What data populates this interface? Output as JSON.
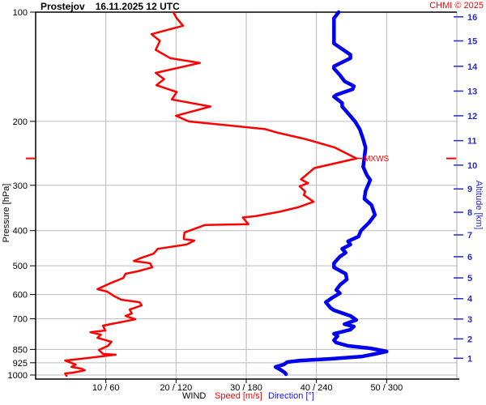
{
  "header": {
    "station": "Prostejov",
    "datetime": "16.11.2025 12 UTC",
    "copyright": "CHMI © 2025"
  },
  "axes": {
    "left_label": "Pressure [hPa]",
    "right_label": "Altitude [km]",
    "bottom_wind": "WIND",
    "bottom_speed": "Speed [m/s]",
    "bottom_direction": "Direction [°]"
  },
  "colors": {
    "speed_curve": "#ff0000",
    "direction_curve": "#0000ee",
    "altitude_axis": "#2929cc",
    "grid": "#bbbbbb",
    "frame": "#000000",
    "right_border": "#aaaaaa",
    "max_wind_marker": "#ff0000"
  },
  "chart_data": {
    "type": "line",
    "title": "Prostejov 16.11.2025 12 UTC",
    "x_axis": {
      "label": "WIND  Speed [m/s]  Direction [°]",
      "speed_range_ms": [
        0,
        60
      ],
      "direction_range_deg": [
        0,
        360
      ],
      "tick_speed_values": [
        10,
        20,
        30,
        40,
        50
      ],
      "tick_labels": [
        "10 / 60",
        "20 / 120",
        "30 / 180",
        "40 / 240",
        "50 / 300"
      ]
    },
    "y_axis": {
      "label_left": "Pressure [hPa]",
      "label_right": "Altitude [km]",
      "scale": "log",
      "pressure_range_hpa": [
        100,
        1026
      ],
      "pressure_ticks": [
        100,
        200,
        300,
        400,
        500,
        600,
        700,
        850,
        925,
        1000
      ],
      "altitude_ticks": [
        {
          "km": 16,
          "pressure_hpa": 103
        },
        {
          "km": 15,
          "pressure_hpa": 120
        },
        {
          "km": 14,
          "pressure_hpa": 141
        },
        {
          "km": 13,
          "pressure_hpa": 165
        },
        {
          "km": 12,
          "pressure_hpa": 193
        },
        {
          "km": 11,
          "pressure_hpa": 226
        },
        {
          "km": 10,
          "pressure_hpa": 264
        },
        {
          "km": 9,
          "pressure_hpa": 307
        },
        {
          "km": 8,
          "pressure_hpa": 356
        },
        {
          "km": 7,
          "pressure_hpa": 411
        },
        {
          "km": 6,
          "pressure_hpa": 472
        },
        {
          "km": 5,
          "pressure_hpa": 540
        },
        {
          "km": 4,
          "pressure_hpa": 616
        },
        {
          "km": 3,
          "pressure_hpa": 701
        },
        {
          "km": 2,
          "pressure_hpa": 795
        },
        {
          "km": 1,
          "pressure_hpa": 899
        }
      ]
    },
    "max_wind": {
      "label": "MXWS",
      "pressure_hpa": 253,
      "speed_ms": 45.7
    },
    "grid": true,
    "series": [
      {
        "name": "Speed [m/s]",
        "color": "#ff0000",
        "x_scale": "speed",
        "points": [
          [
            100,
            19.6
          ],
          [
            104,
            20.1
          ],
          [
            109,
            21.0
          ],
          [
            115,
            16.5
          ],
          [
            120,
            17.7
          ],
          [
            127,
            17.1
          ],
          [
            134,
            19.2
          ],
          [
            138,
            23.4
          ],
          [
            147,
            17.1
          ],
          [
            153,
            18.3
          ],
          [
            159,
            17.2
          ],
          [
            166,
            20.1
          ],
          [
            174,
            19.4
          ],
          [
            182,
            24.9
          ],
          [
            193,
            20.0
          ],
          [
            200,
            21.8
          ],
          [
            210,
            32.7
          ],
          [
            215,
            34.5
          ],
          [
            224,
            38.5
          ],
          [
            236,
            42.6
          ],
          [
            253,
            45.7
          ],
          [
            269,
            39.7
          ],
          [
            289,
            37.8
          ],
          [
            296,
            38.8
          ],
          [
            302,
            37.6
          ],
          [
            312,
            38.4
          ],
          [
            319,
            38.2
          ],
          [
            333,
            39.6
          ],
          [
            345,
            37.4
          ],
          [
            355,
            34.7
          ],
          [
            365,
            31.3
          ],
          [
            368,
            29.5
          ],
          [
            384,
            30.3
          ],
          [
            386,
            24.1
          ],
          [
            405,
            21.2
          ],
          [
            422,
            21.1
          ],
          [
            426,
            22.6
          ],
          [
            437,
            21.5
          ],
          [
            449,
            17.4
          ],
          [
            463,
            16.8
          ],
          [
            475,
            15.1
          ],
          [
            485,
            14.0
          ],
          [
            492,
            16.3
          ],
          [
            505,
            16.6
          ],
          [
            518,
            14.5
          ],
          [
            526,
            12.8
          ],
          [
            540,
            12.5
          ],
          [
            560,
            10.5
          ],
          [
            580,
            8.8
          ],
          [
            589,
            10.2
          ],
          [
            605,
            11.1
          ],
          [
            620,
            12.2
          ],
          [
            630,
            14.8
          ],
          [
            643,
            15.1
          ],
          [
            660,
            13.4
          ],
          [
            677,
            13.7
          ],
          [
            687,
            12.8
          ],
          [
            702,
            14.2
          ],
          [
            731,
            9.6
          ],
          [
            754,
            9.9
          ],
          [
            762,
            7.8
          ],
          [
            774,
            9.3
          ],
          [
            790,
            8.8
          ],
          [
            810,
            10.8
          ],
          [
            831,
            10.3
          ],
          [
            853,
            9.0
          ],
          [
            875,
            9.6
          ],
          [
            879,
            11.4
          ],
          [
            898,
            7.3
          ],
          [
            912,
            4.2
          ],
          [
            936,
            5.7
          ],
          [
            950,
            5.1
          ],
          [
            960,
            6.5
          ],
          [
            970,
            7.0
          ],
          [
            985,
            5.3
          ],
          [
            990,
            4.2
          ],
          [
            1005,
            4.4
          ]
        ]
      },
      {
        "name": "Direction [°]",
        "color": "#0000ee",
        "x_scale": "direction",
        "points": [
          [
            100,
            259
          ],
          [
            104,
            255
          ],
          [
            111,
            255
          ],
          [
            118,
            255
          ],
          [
            122,
            255
          ],
          [
            131,
            269
          ],
          [
            134,
            269
          ],
          [
            141,
            255
          ],
          [
            143,
            255
          ],
          [
            149,
            260
          ],
          [
            155,
            264
          ],
          [
            160,
            272
          ],
          [
            163,
            271
          ],
          [
            169,
            257
          ],
          [
            171,
            255
          ],
          [
            178,
            262
          ],
          [
            182,
            262
          ],
          [
            190,
            267
          ],
          [
            200,
            273
          ],
          [
            210,
            277
          ],
          [
            224,
            280
          ],
          [
            236,
            282
          ],
          [
            251,
            281
          ],
          [
            267,
            280
          ],
          [
            281,
            283
          ],
          [
            290,
            286
          ],
          [
            311,
            282
          ],
          [
            327,
            281
          ],
          [
            340,
            287
          ],
          [
            362,
            290
          ],
          [
            380,
            285
          ],
          [
            400,
            278
          ],
          [
            415,
            276
          ],
          [
            428,
            267
          ],
          [
            437,
            269
          ],
          [
            449,
            262
          ],
          [
            460,
            265
          ],
          [
            472,
            260
          ],
          [
            492,
            255
          ],
          [
            505,
            255
          ],
          [
            526,
            265
          ],
          [
            545,
            266
          ],
          [
            565,
            260
          ],
          [
            583,
            257
          ],
          [
            595,
            260
          ],
          [
            614,
            253
          ],
          [
            630,
            248
          ],
          [
            653,
            252
          ],
          [
            663,
            255
          ],
          [
            687,
            269
          ],
          [
            705,
            274
          ],
          [
            724,
            264
          ],
          [
            735,
            272
          ],
          [
            750,
            269
          ],
          [
            770,
            255
          ],
          [
            781,
            258
          ],
          [
            802,
            255
          ],
          [
            814,
            257
          ],
          [
            831,
            267
          ],
          [
            844,
            286
          ],
          [
            857,
            297
          ],
          [
            861,
            300
          ],
          [
            875,
            290
          ],
          [
            889,
            279
          ],
          [
            903,
            251
          ],
          [
            912,
            226
          ],
          [
            921,
            215
          ],
          [
            936,
            212
          ],
          [
            950,
            205
          ],
          [
            970,
            210
          ],
          [
            985,
            213
          ],
          [
            995,
            214
          ]
        ]
      }
    ]
  }
}
